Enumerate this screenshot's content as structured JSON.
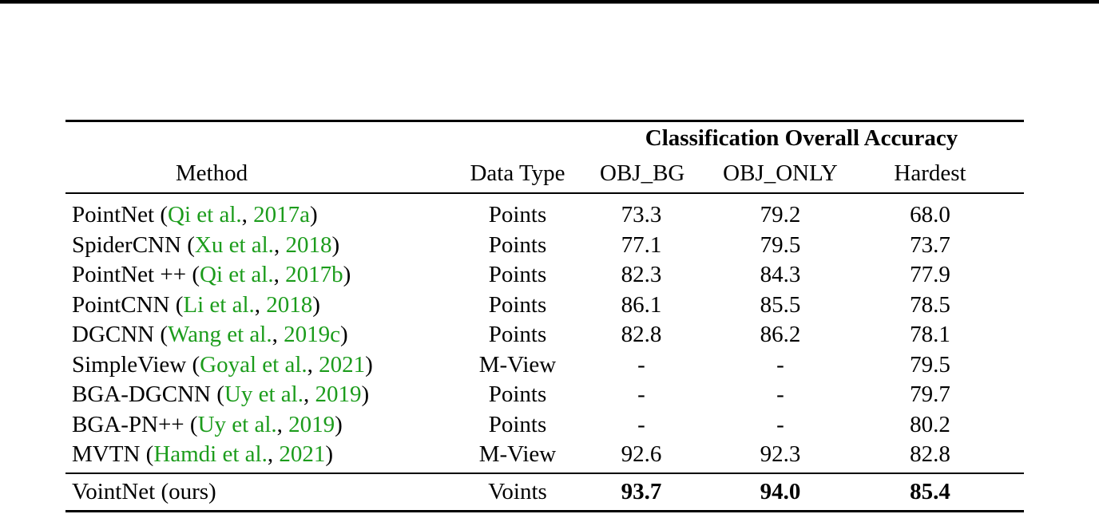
{
  "table": {
    "span_header": "Classification Overall Accuracy",
    "columns": {
      "method": "Method",
      "data_type": "Data Type",
      "obj_bg": "OBJ_BG",
      "obj_only": "OBJ_ONLY",
      "hardest": "Hardest"
    },
    "rows": [
      {
        "method_name": "PointNet",
        "open": " (",
        "cite_author": "Qi et al.",
        "sep": ", ",
        "cite_year": "2017a",
        "close": ")",
        "data_type": "Points",
        "obj_bg": "73.3",
        "obj_only": "79.2",
        "hardest": "68.0"
      },
      {
        "method_name": "SpiderCNN",
        "open": " (",
        "cite_author": "Xu et al.",
        "sep": ", ",
        "cite_year": "2018",
        "close": ")",
        "data_type": "Points",
        "obj_bg": "77.1",
        "obj_only": "79.5",
        "hardest": "73.7"
      },
      {
        "method_name": "PointNet ++",
        "open": " (",
        "cite_author": "Qi et al.",
        "sep": ", ",
        "cite_year": "2017b",
        "close": ")",
        "data_type": "Points",
        "obj_bg": "82.3",
        "obj_only": "84.3",
        "hardest": "77.9"
      },
      {
        "method_name": "PointCNN",
        "open": " (",
        "cite_author": "Li et al.",
        "sep": ", ",
        "cite_year": "2018",
        "close": ")",
        "data_type": "Points",
        "obj_bg": "86.1",
        "obj_only": "85.5",
        "hardest": "78.5"
      },
      {
        "method_name": "DGCNN",
        "open": " (",
        "cite_author": "Wang et al.",
        "sep": ", ",
        "cite_year": "2019c",
        "close": ")",
        "data_type": "Points",
        "obj_bg": "82.8",
        "obj_only": "86.2",
        "hardest": "78.1"
      },
      {
        "method_name": "SimpleView",
        "open": " (",
        "cite_author": "Goyal et al.",
        "sep": ", ",
        "cite_year": "2021",
        "close": ")",
        "data_type": "M-View",
        "obj_bg": "-",
        "obj_only": "-",
        "hardest": "79.5"
      },
      {
        "method_name": "BGA-DGCNN",
        "open": " (",
        "cite_author": "Uy et al.",
        "sep": ", ",
        "cite_year": "2019",
        "close": ")",
        "data_type": "Points",
        "obj_bg": "-",
        "obj_only": "-",
        "hardest": "79.7"
      },
      {
        "method_name": "BGA-PN++",
        "open": " (",
        "cite_author": "Uy et al.",
        "sep": ", ",
        "cite_year": "2019",
        "close": ")",
        "data_type": "Points",
        "obj_bg": "-",
        "obj_only": "-",
        "hardest": "80.2"
      },
      {
        "method_name": "MVTN",
        "open": " (",
        "cite_author": "Hamdi et al.",
        "sep": ", ",
        "cite_year": "2021",
        "close": ")",
        "data_type": "M-View",
        "obj_bg": "92.6",
        "obj_only": "92.3",
        "hardest": "82.8"
      }
    ],
    "final_row": {
      "method": "VointNet (ours)",
      "data_type": "Voints",
      "obj_bg": "93.7",
      "obj_only": "94.0",
      "hardest": "85.4"
    },
    "colors": {
      "citation_green": "#1c9c1c",
      "text": "#000000"
    }
  }
}
